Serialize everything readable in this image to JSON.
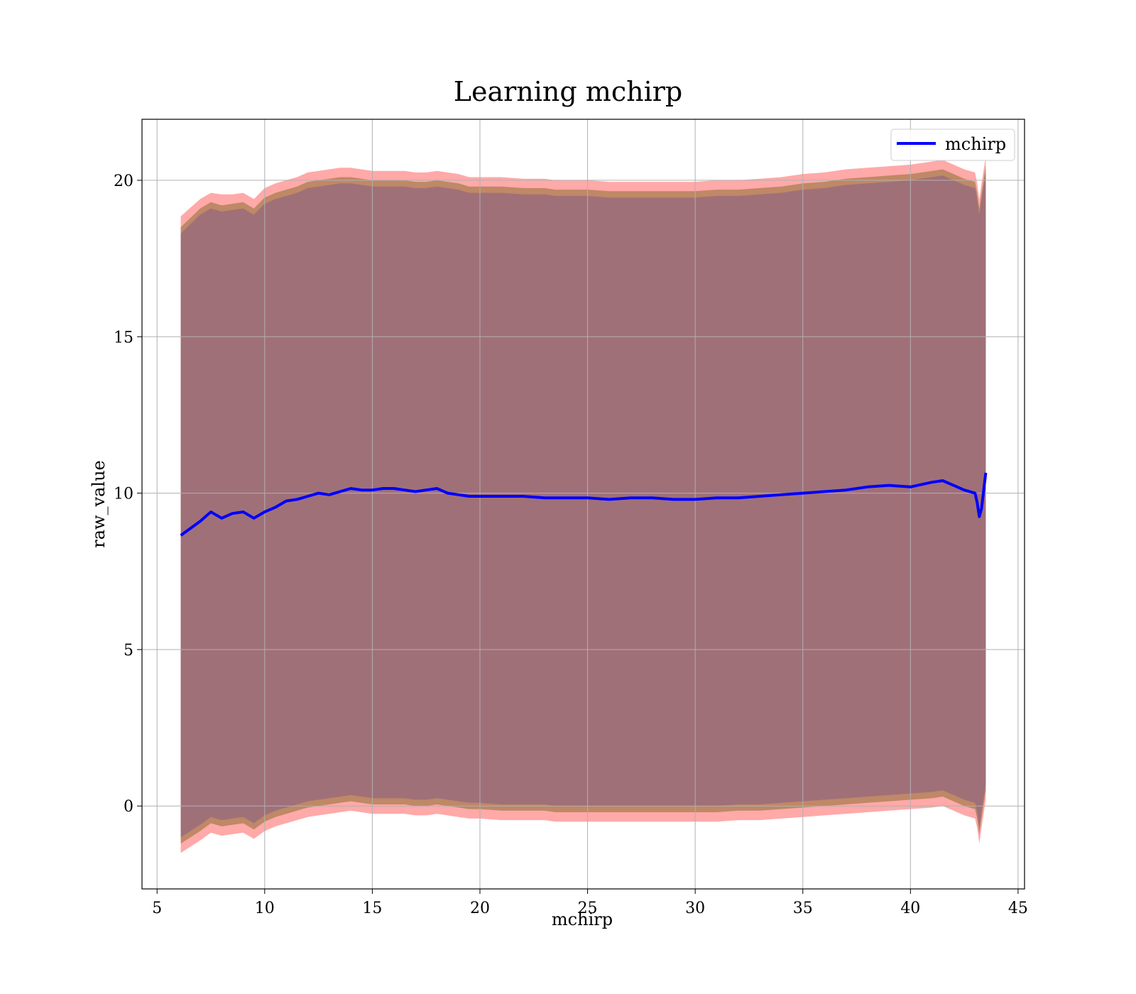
{
  "chart_data": {
    "type": "area",
    "title": "Learning mchirp",
    "xlabel": "mchirp",
    "ylabel": "raw_value",
    "xlim": [
      4.3,
      45.3
    ],
    "ylim": [
      -2.65,
      21.95
    ],
    "xticks": [
      5,
      10,
      15,
      20,
      25,
      30,
      35,
      40,
      45
    ],
    "yticks": [
      0,
      5,
      10,
      15,
      20
    ],
    "grid": true,
    "legend_position": "top-right",
    "colors": {
      "line": "#0000ff",
      "outer_band": "#ff9a9a",
      "mid_band": "#b8845e",
      "inner_band": "#a07079",
      "grid": "#b0b0b0"
    },
    "series": [
      {
        "name": "mchirp",
        "x": [
          6.1,
          7.0,
          7.5,
          8.0,
          8.5,
          9.0,
          9.5,
          10.0,
          10.5,
          11.0,
          11.5,
          12.0,
          12.5,
          13.0,
          13.5,
          14.0,
          14.5,
          15.0,
          15.5,
          16.0,
          16.5,
          17.0,
          17.5,
          18.0,
          18.5,
          19.0,
          19.5,
          20.0,
          21.0,
          22.0,
          23.0,
          23.5,
          24.0,
          25.0,
          26.0,
          27.0,
          28.0,
          29.0,
          30.0,
          31.0,
          32.0,
          33.0,
          34.0,
          35.0,
          36.0,
          37.0,
          38.0,
          39.0,
          40.0,
          41.0,
          41.5,
          42.0,
          42.5,
          43.0,
          43.1,
          43.2,
          43.3,
          43.5
        ],
        "values": [
          8.65,
          9.1,
          9.4,
          9.2,
          9.35,
          9.4,
          9.2,
          9.4,
          9.55,
          9.75,
          9.8,
          9.9,
          10.0,
          9.95,
          10.05,
          10.15,
          10.1,
          10.1,
          10.15,
          10.15,
          10.1,
          10.05,
          10.1,
          10.15,
          10.0,
          9.95,
          9.9,
          9.9,
          9.9,
          9.9,
          9.85,
          9.85,
          9.85,
          9.85,
          9.8,
          9.85,
          9.85,
          9.8,
          9.8,
          9.85,
          9.85,
          9.9,
          9.95,
          10.0,
          10.05,
          10.1,
          10.2,
          10.25,
          10.2,
          10.35,
          10.4,
          10.25,
          10.1,
          10.0,
          9.7,
          9.25,
          9.5,
          10.65
        ]
      }
    ],
    "bands": {
      "upper_outer": [
        18.85,
        19.4,
        19.6,
        19.55,
        19.55,
        19.6,
        19.4,
        19.75,
        19.9,
        20.0,
        20.1,
        20.25,
        20.3,
        20.35,
        20.4,
        20.4,
        20.35,
        20.3,
        20.3,
        20.3,
        20.3,
        20.25,
        20.25,
        20.3,
        20.25,
        20.2,
        20.1,
        20.1,
        20.1,
        20.05,
        20.05,
        20.0,
        20.0,
        20.0,
        19.95,
        19.95,
        19.95,
        19.95,
        19.95,
        20.0,
        20.0,
        20.05,
        20.1,
        20.2,
        20.25,
        20.35,
        20.4,
        20.45,
        20.5,
        20.6,
        20.65,
        20.5,
        20.35,
        20.25,
        19.9,
        19.4,
        19.9,
        20.75
      ],
      "upper_mid": [
        18.5,
        19.1,
        19.3,
        19.2,
        19.25,
        19.3,
        19.1,
        19.45,
        19.6,
        19.7,
        19.8,
        19.95,
        20.0,
        20.05,
        20.1,
        20.1,
        20.05,
        20.0,
        20.0,
        20.0,
        20.0,
        19.95,
        19.95,
        20.0,
        19.95,
        19.9,
        19.8,
        19.8,
        19.8,
        19.75,
        19.75,
        19.7,
        19.7,
        19.7,
        19.65,
        19.65,
        19.65,
        19.65,
        19.65,
        19.7,
        19.7,
        19.75,
        19.8,
        19.9,
        19.95,
        20.05,
        20.1,
        20.15,
        20.2,
        20.3,
        20.35,
        20.2,
        20.05,
        19.95,
        19.6,
        19.1,
        19.6,
        20.45
      ],
      "upper_inner": [
        18.3,
        18.9,
        19.1,
        19.0,
        19.05,
        19.1,
        18.9,
        19.25,
        19.4,
        19.5,
        19.6,
        19.75,
        19.8,
        19.85,
        19.9,
        19.9,
        19.85,
        19.8,
        19.8,
        19.8,
        19.8,
        19.75,
        19.75,
        19.8,
        19.75,
        19.7,
        19.6,
        19.6,
        19.6,
        19.55,
        19.55,
        19.5,
        19.5,
        19.5,
        19.45,
        19.45,
        19.45,
        19.45,
        19.45,
        19.5,
        19.5,
        19.55,
        19.6,
        19.7,
        19.75,
        19.85,
        19.9,
        19.95,
        20.0,
        20.1,
        20.15,
        20.0,
        19.85,
        19.75,
        19.4,
        18.9,
        19.4,
        20.25
      ],
      "lower_inner": [
        -1.0,
        -0.6,
        -0.35,
        -0.45,
        -0.4,
        -0.35,
        -0.55,
        -0.3,
        -0.15,
        -0.05,
        0.05,
        0.15,
        0.2,
        0.25,
        0.3,
        0.35,
        0.3,
        0.25,
        0.25,
        0.25,
        0.25,
        0.2,
        0.2,
        0.25,
        0.2,
        0.15,
        0.1,
        0.1,
        0.05,
        0.05,
        0.05,
        0.0,
        0.0,
        0.0,
        0.0,
        0.0,
        0.0,
        0.0,
        0.0,
        0.0,
        0.05,
        0.05,
        0.1,
        0.15,
        0.2,
        0.25,
        0.3,
        0.35,
        0.4,
        0.45,
        0.5,
        0.35,
        0.2,
        0.1,
        -0.2,
        -0.7,
        -0.2,
        0.7
      ],
      "lower_mid": [
        -1.2,
        -0.8,
        -0.55,
        -0.65,
        -0.6,
        -0.55,
        -0.75,
        -0.5,
        -0.35,
        -0.25,
        -0.15,
        -0.05,
        0.0,
        0.05,
        0.1,
        0.15,
        0.1,
        0.05,
        0.05,
        0.05,
        0.05,
        0.0,
        0.0,
        0.05,
        0.0,
        -0.05,
        -0.1,
        -0.1,
        -0.15,
        -0.15,
        -0.15,
        -0.2,
        -0.2,
        -0.2,
        -0.2,
        -0.2,
        -0.2,
        -0.2,
        -0.2,
        -0.2,
        -0.15,
        -0.15,
        -0.1,
        -0.05,
        0.0,
        0.05,
        0.1,
        0.15,
        0.2,
        0.25,
        0.3,
        0.15,
        0.0,
        -0.1,
        -0.4,
        -0.9,
        -0.4,
        0.5
      ],
      "lower_outer": [
        -1.5,
        -1.1,
        -0.85,
        -0.95,
        -0.9,
        -0.85,
        -1.05,
        -0.8,
        -0.65,
        -0.55,
        -0.45,
        -0.35,
        -0.3,
        -0.25,
        -0.2,
        -0.15,
        -0.2,
        -0.25,
        -0.25,
        -0.25,
        -0.25,
        -0.3,
        -0.3,
        -0.25,
        -0.3,
        -0.35,
        -0.4,
        -0.4,
        -0.45,
        -0.45,
        -0.45,
        -0.5,
        -0.5,
        -0.5,
        -0.5,
        -0.5,
        -0.5,
        -0.5,
        -0.5,
        -0.5,
        -0.45,
        -0.45,
        -0.4,
        -0.35,
        -0.3,
        -0.25,
        -0.2,
        -0.15,
        -0.1,
        -0.05,
        0.0,
        -0.15,
        -0.3,
        -0.4,
        -0.7,
        -1.2,
        -0.7,
        0.2
      ]
    }
  }
}
